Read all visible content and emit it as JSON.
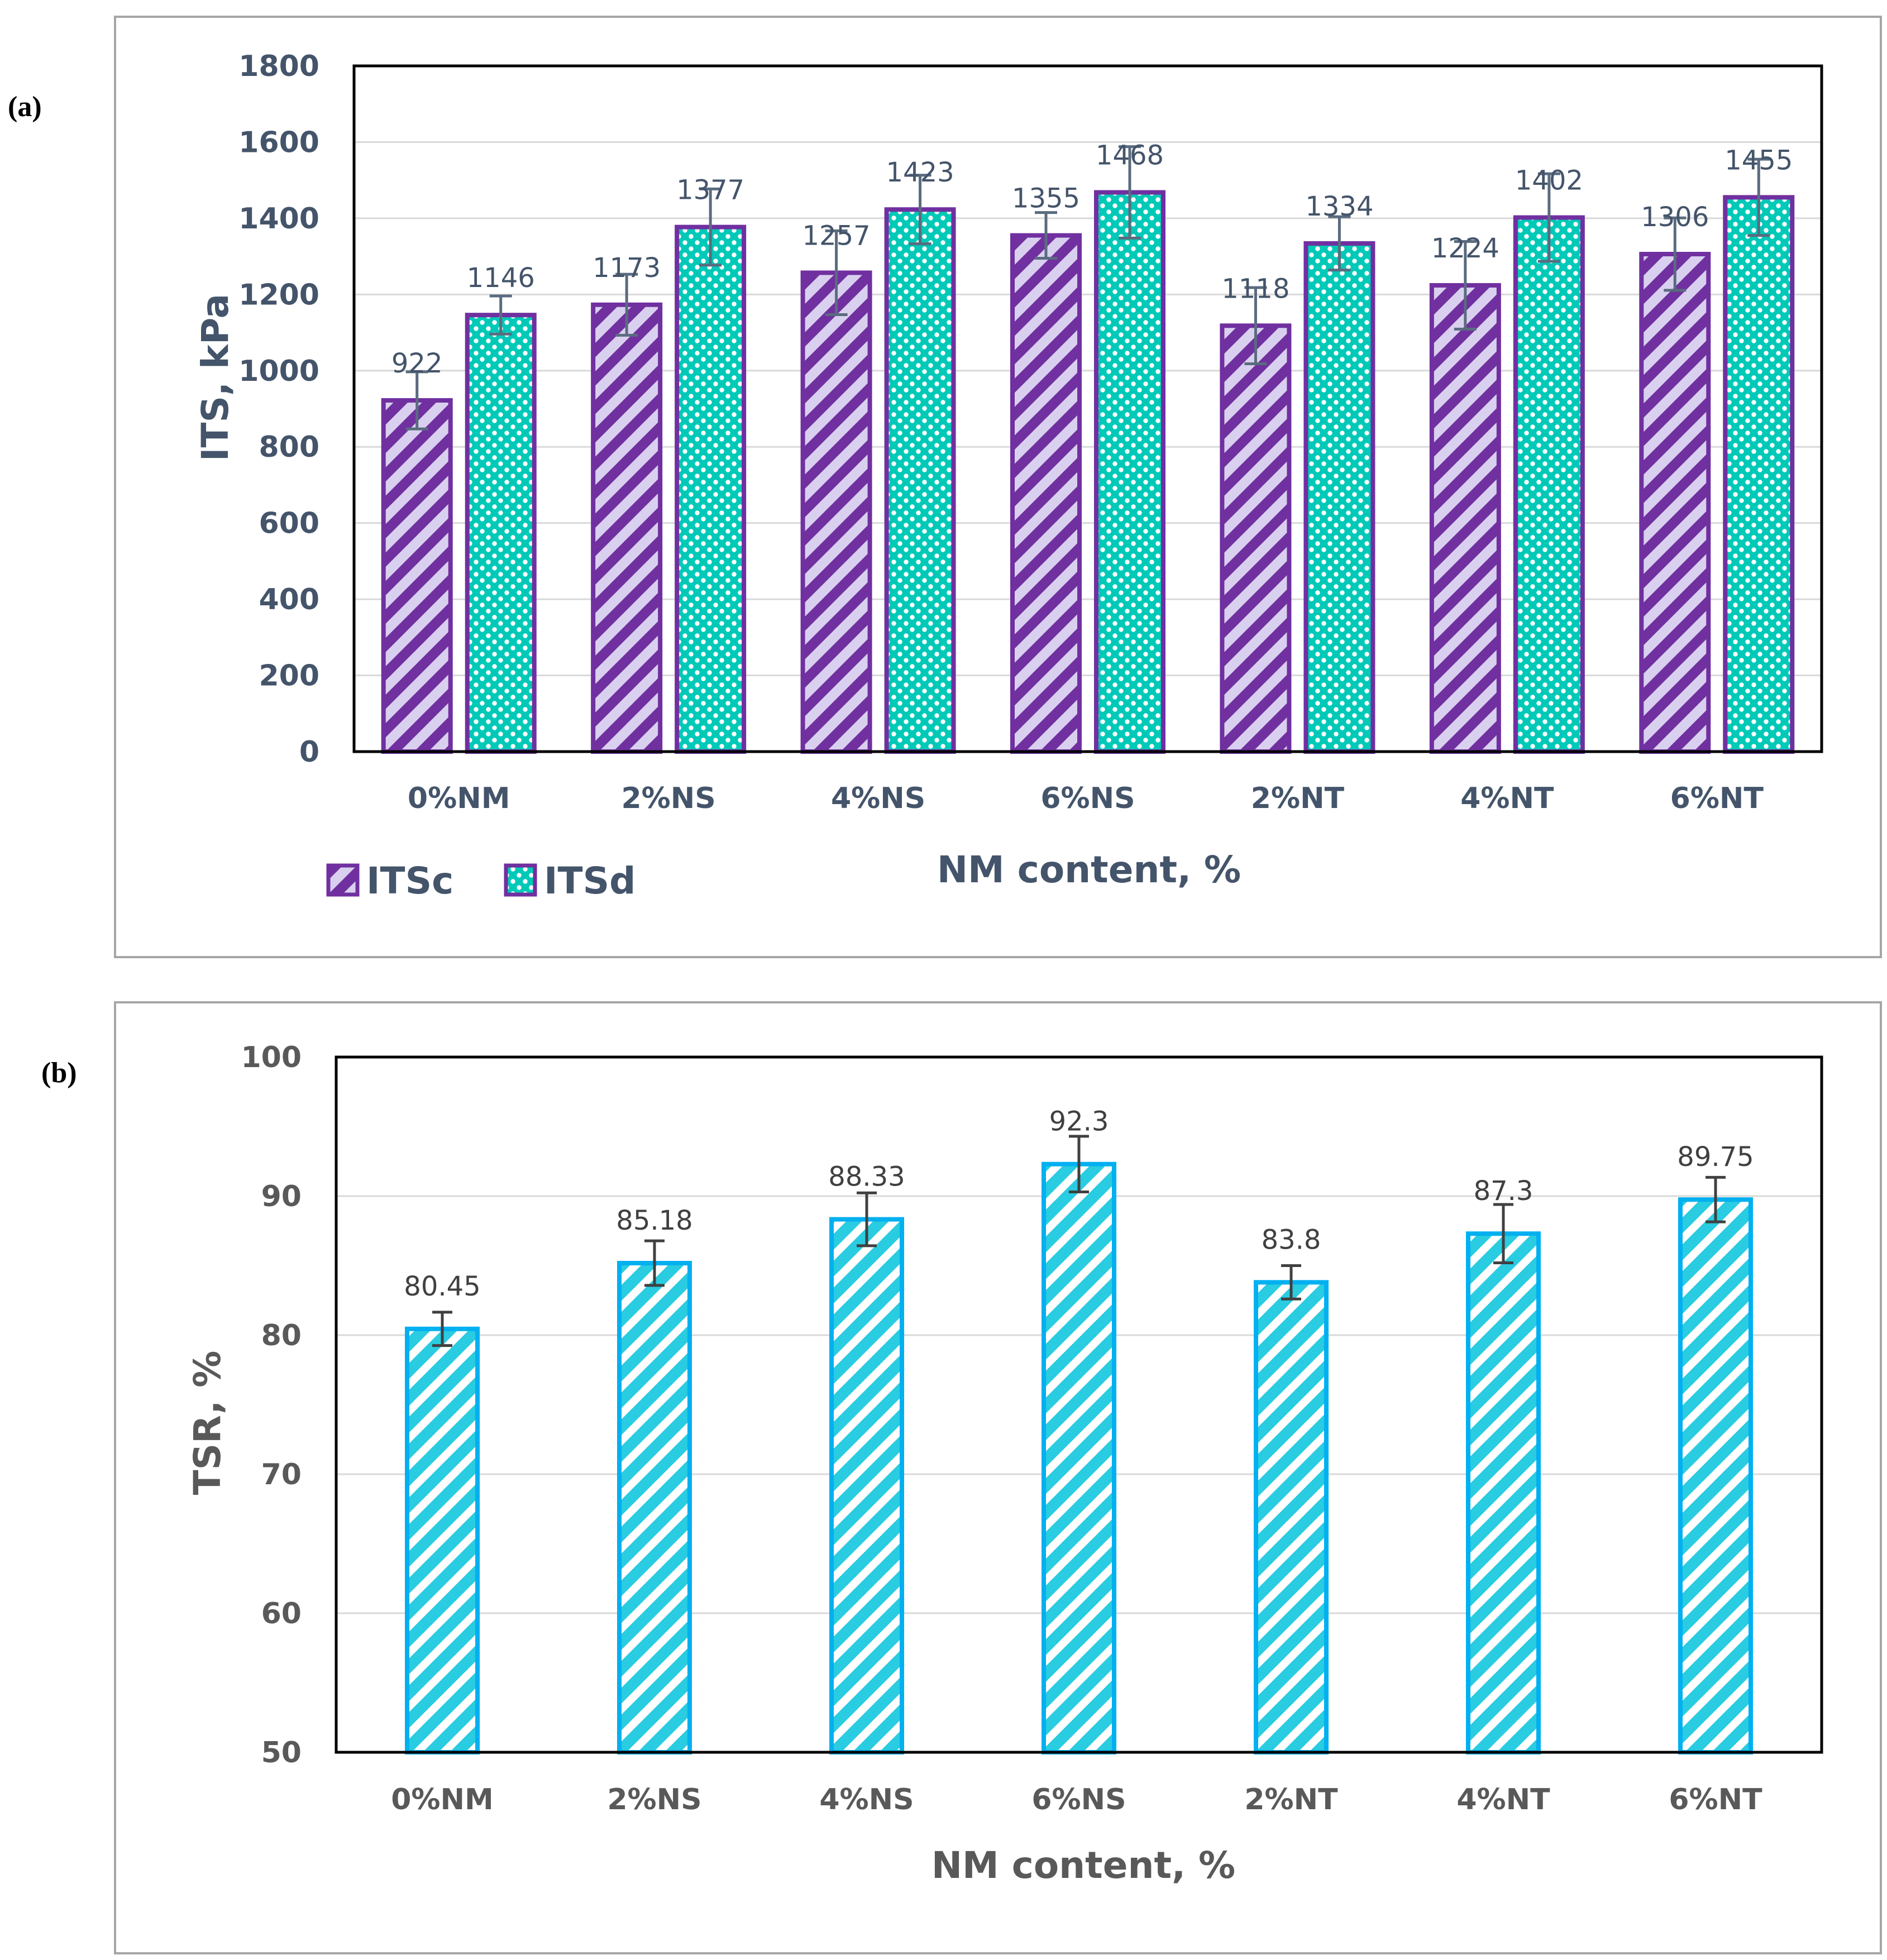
{
  "panels": {
    "a": "(a)",
    "b": "(b)"
  },
  "colors": {
    "axis_text_a": "#44546a",
    "axis_text_b": "#595959",
    "purple": "#7030a0",
    "lavender": "#d9d0ef",
    "teal": "#00ccbb",
    "cyan_edge": "#00b0f0",
    "cyan_fill": "#29cce0",
    "errbar_a": "#5a6b7f",
    "errbar_b": "#404040",
    "grid": "#d9d9d9",
    "frame": "#a6a6a6"
  },
  "chart_data": [
    {
      "id": "a",
      "type": "bar",
      "title": "",
      "xlabel": "NM content, %",
      "ylabel": "ITS, kPa",
      "ylim": [
        0,
        1800
      ],
      "yticks": [
        0,
        200,
        400,
        600,
        800,
        1000,
        1200,
        1400,
        1600,
        1800
      ],
      "grid": true,
      "legend_position": "bottom-left",
      "categories": [
        "0%NM",
        "2%NS",
        "4%NS",
        "6%NS",
        "2%NT",
        "4%NT",
        "6%NT"
      ],
      "series": [
        {
          "name": "ITSc",
          "values": [
            922,
            1173,
            1257,
            1355,
            1118,
            1224,
            1306
          ],
          "errors": [
            75,
            80,
            110,
            60,
            100,
            115,
            95
          ]
        },
        {
          "name": "ITSd",
          "values": [
            1146,
            1377,
            1423,
            1468,
            1334,
            1402,
            1455
          ],
          "errors": [
            50,
            100,
            90,
            120,
            70,
            115,
            100
          ]
        }
      ]
    },
    {
      "id": "b",
      "type": "bar",
      "title": "",
      "xlabel": "NM content, %",
      "ylabel": "TSR, %",
      "ylim": [
        50,
        100
      ],
      "yticks": [
        50,
        60,
        70,
        80,
        90,
        100
      ],
      "grid": true,
      "categories": [
        "0%NM",
        "2%NS",
        "4%NS",
        "6%NS",
        "2%NT",
        "4%NT",
        "6%NT"
      ],
      "series": [
        {
          "name": "TSR",
          "values": [
            80.45,
            85.18,
            88.33,
            92.3,
            83.8,
            87.3,
            89.75
          ],
          "errors": [
            1.2,
            1.6,
            1.9,
            2.0,
            1.2,
            2.1,
            1.6
          ]
        }
      ]
    }
  ]
}
